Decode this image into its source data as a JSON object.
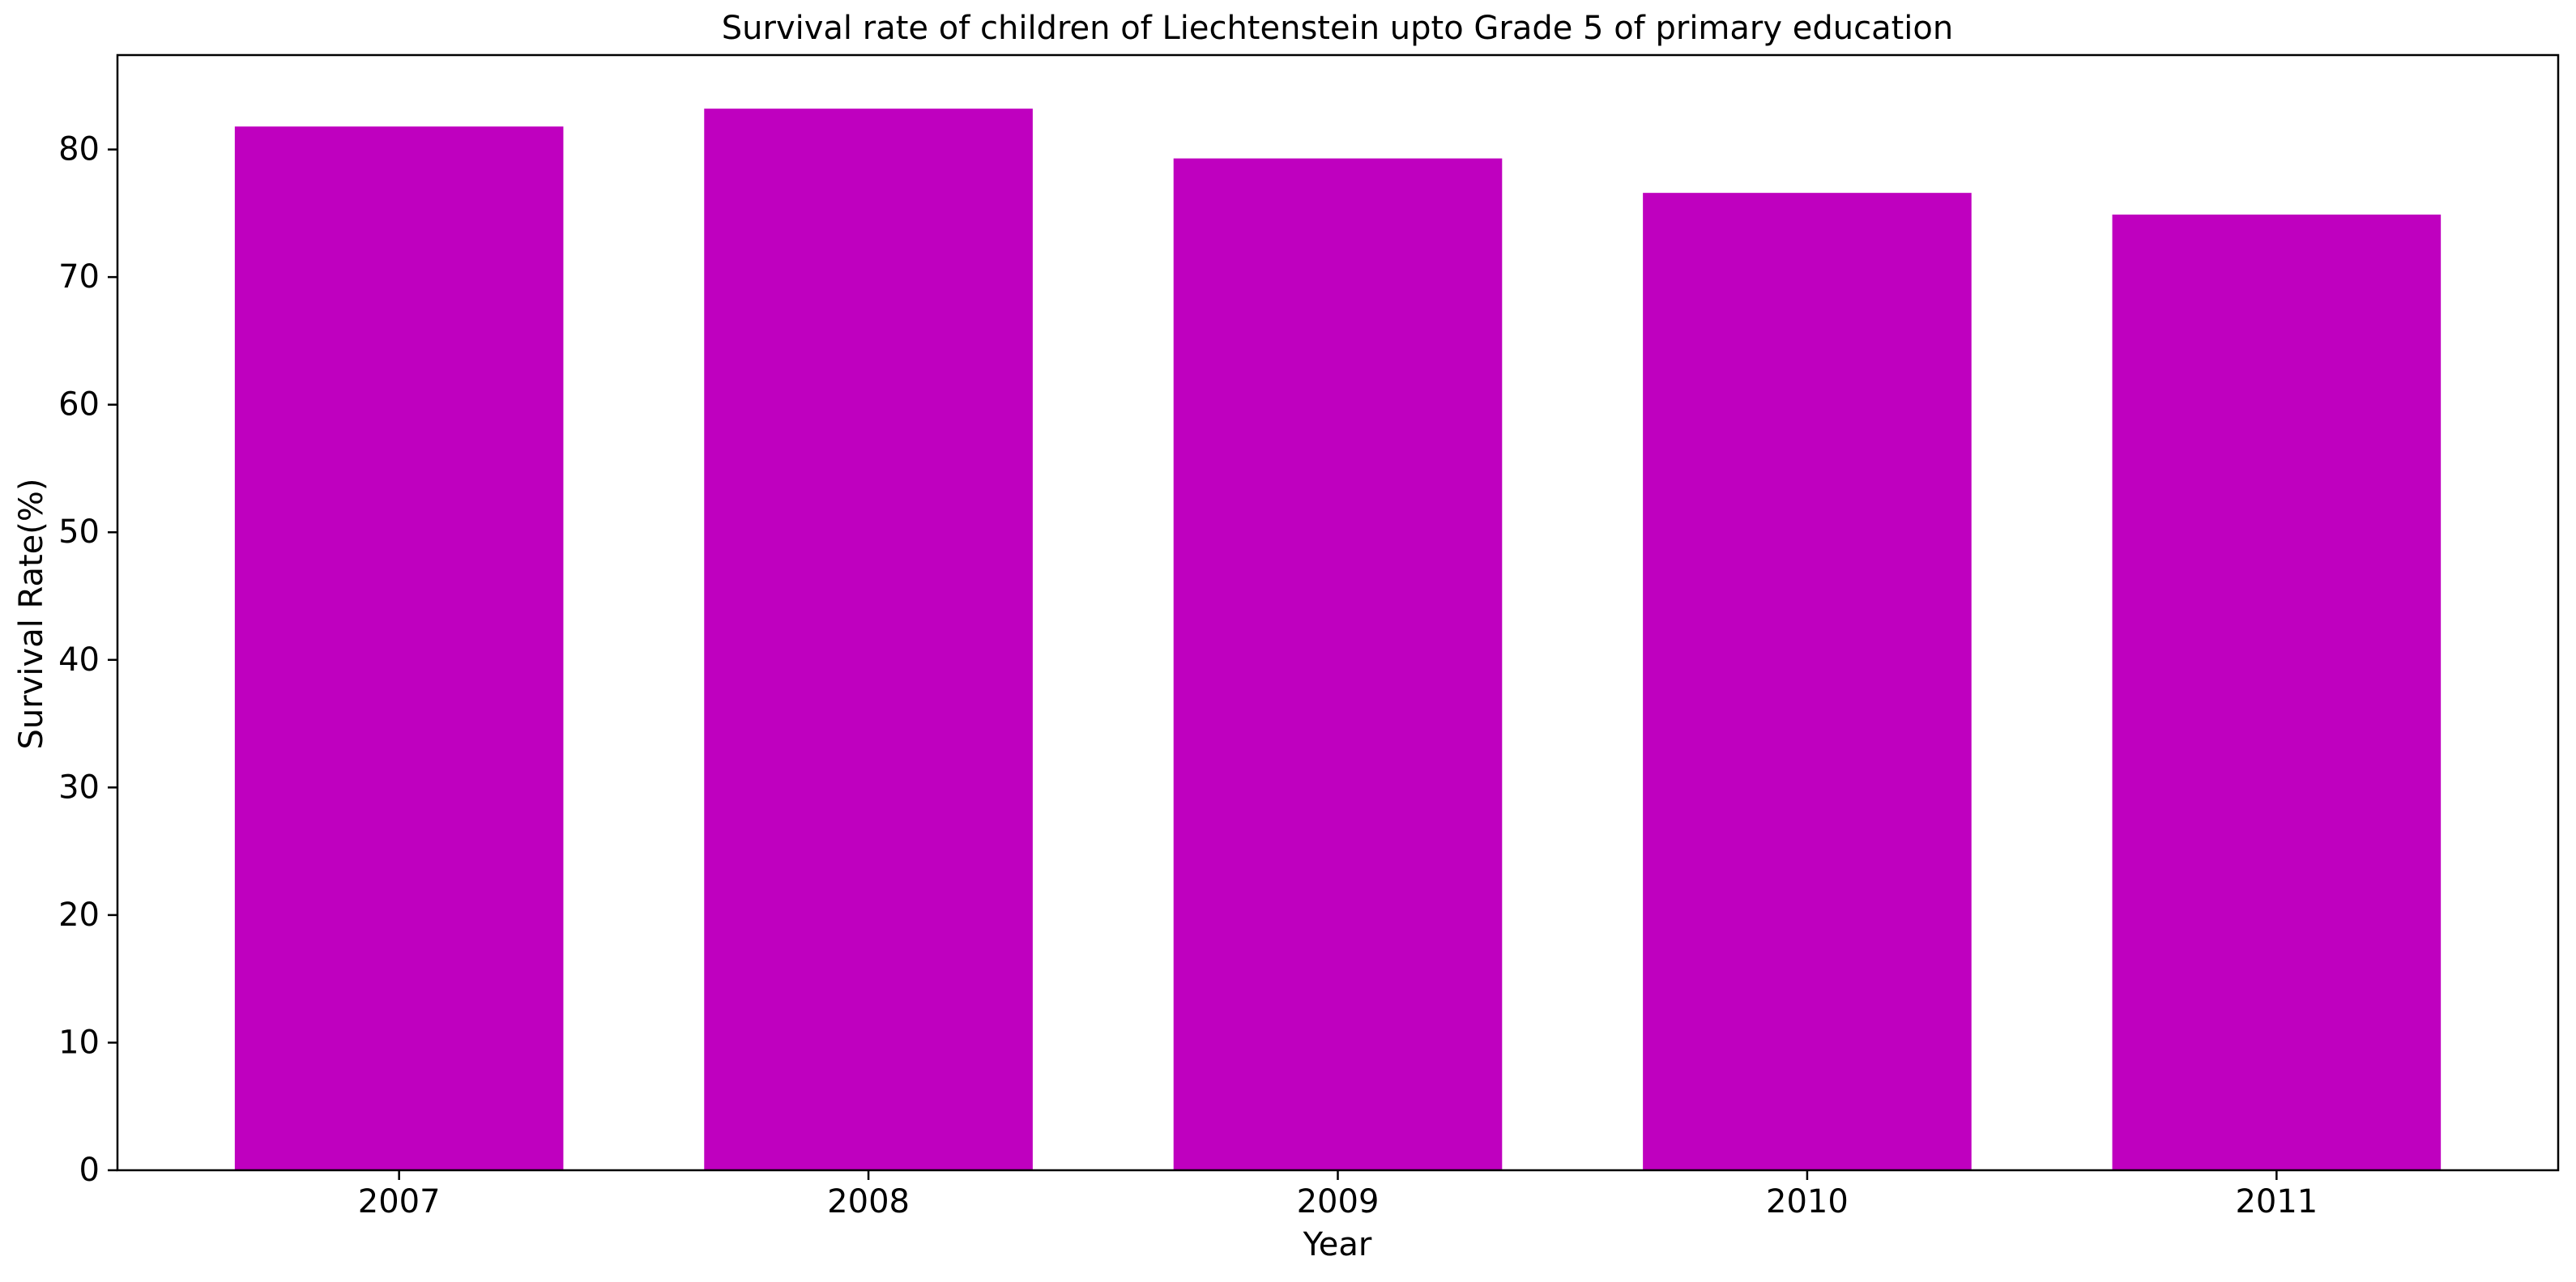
{
  "chart_data": {
    "type": "bar",
    "title": "Survival rate of children of Liechtenstein upto Grade 5 of primary education",
    "xlabel": "Year",
    "ylabel": "Survival Rate(%)",
    "categories": [
      "2007",
      "2008",
      "2009",
      "2010",
      "2011"
    ],
    "values": [
      81.8,
      83.2,
      79.3,
      76.6,
      74.9
    ],
    "ylim": [
      0,
      87.4
    ],
    "yticks": [
      0,
      10,
      20,
      30,
      40,
      50,
      60,
      70,
      80
    ],
    "grid": false,
    "legend": "none",
    "bar_color": "#bf00bf"
  }
}
